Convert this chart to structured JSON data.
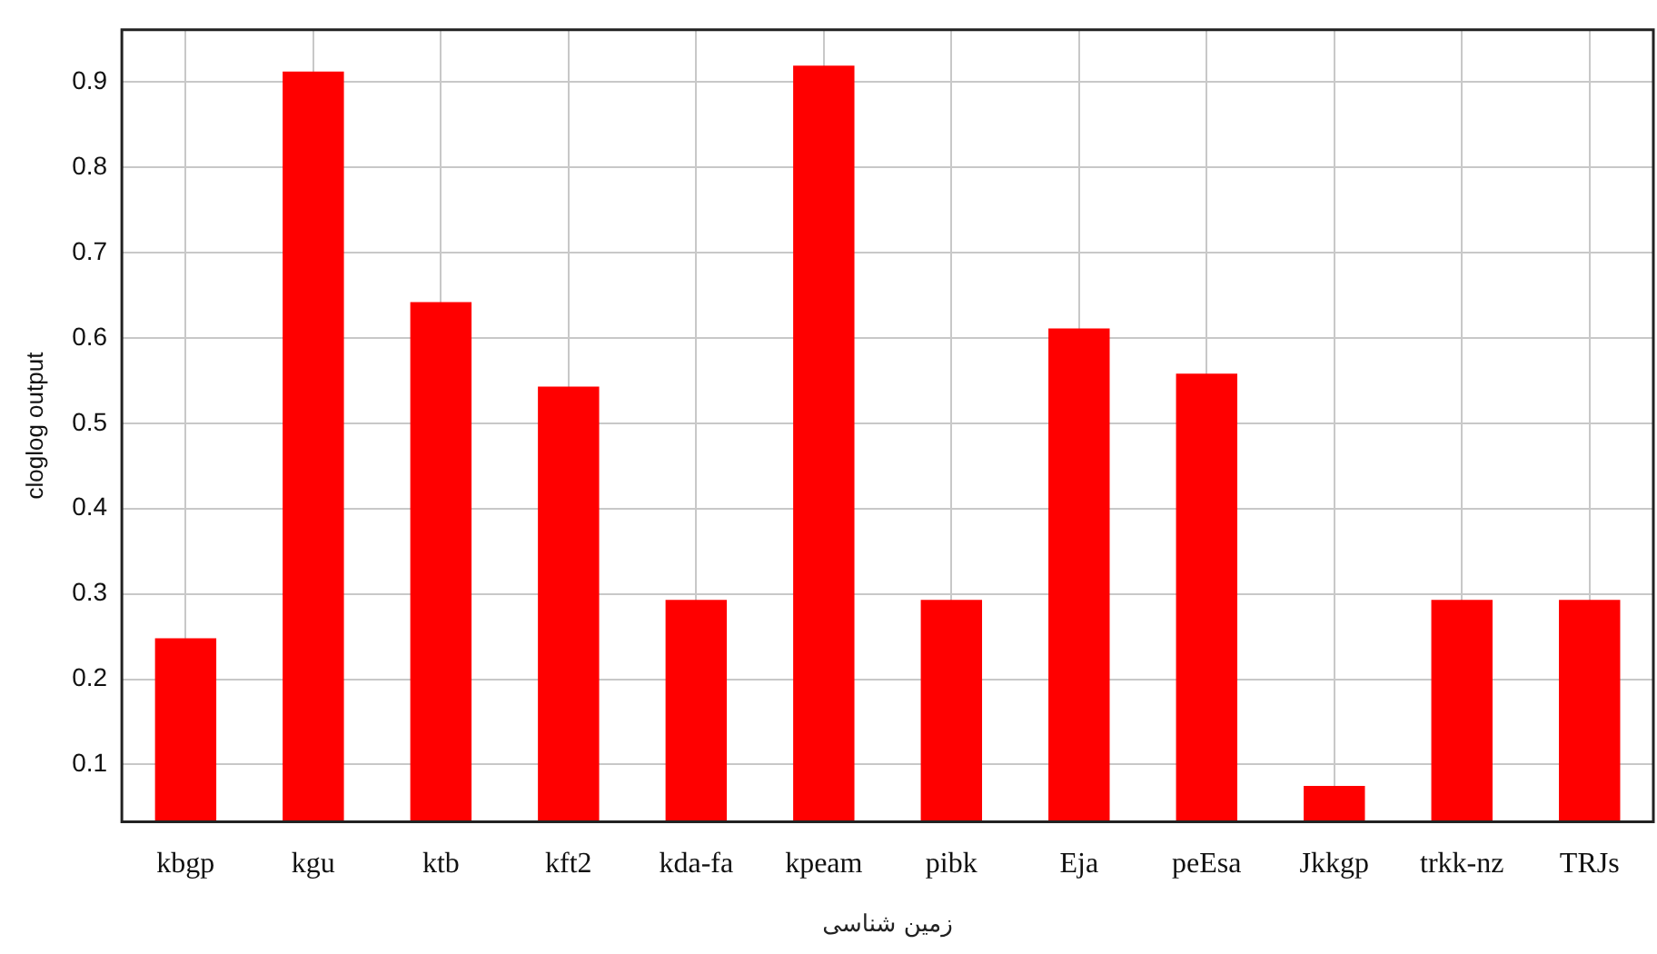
{
  "chart_data": {
    "type": "bar",
    "xlabel": "زمین شناسی",
    "ylabel": "cloglog output",
    "categories": [
      "kbgp",
      "kgu",
      "ktb",
      "kft2",
      "kda-fa",
      "kpeam",
      "pibk",
      "Eja",
      "peEsa",
      "Jkkgp",
      "trkk-nz",
      "TRJs"
    ],
    "values": [
      0.248,
      0.912,
      0.642,
      0.543,
      0.293,
      0.919,
      0.293,
      0.611,
      0.558,
      0.075,
      0.293,
      0.293
    ],
    "color": "#ff0000",
    "ylim": [
      0.033,
      0.961
    ],
    "yticks": [
      0.1,
      0.2,
      0.3,
      0.4,
      0.5,
      0.6,
      0.7,
      0.8,
      0.9
    ],
    "grid": true,
    "legend": false
  }
}
